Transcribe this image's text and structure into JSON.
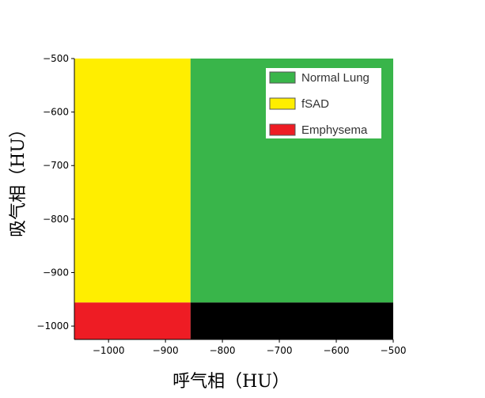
{
  "chart_data": {
    "type": "heatmap",
    "xlabel": "呼气相（HU）",
    "ylabel": "吸气相（HU）",
    "xlim": [
      -1060,
      -500
    ],
    "ylim": [
      -1025,
      -500
    ],
    "x_ticks": [
      {
        "value": -1000,
        "label": "−1000"
      },
      {
        "value": -900,
        "label": "−900"
      },
      {
        "value": -800,
        "label": "−800"
      },
      {
        "value": -700,
        "label": "−700"
      },
      {
        "value": -600,
        "label": "−600"
      },
      {
        "value": -500,
        "label": "−500"
      }
    ],
    "y_ticks": [
      {
        "value": -500,
        "label": "−500"
      },
      {
        "value": -600,
        "label": "−600"
      },
      {
        "value": -700,
        "label": "−700"
      },
      {
        "value": -800,
        "label": "−800"
      },
      {
        "value": -900,
        "label": "−900"
      },
      {
        "value": -1000,
        "label": "−1000"
      }
    ],
    "regions": [
      {
        "name": "fSAD",
        "x": [
          -1060,
          -856
        ],
        "y": [
          -956,
          -500
        ],
        "color": "#ffee00"
      },
      {
        "name": "Normal Lung",
        "x": [
          -856,
          -500
        ],
        "y": [
          -956,
          -500
        ],
        "color": "#39b54a"
      },
      {
        "name": "Emphysema",
        "x": [
          -1060,
          -856
        ],
        "y": [
          -1025,
          -956
        ],
        "color": "#ee1c24"
      },
      {
        "name": "",
        "x": [
          -856,
          -500
        ],
        "y": [
          -1025,
          -956
        ],
        "color": "#000000"
      }
    ],
    "legend": {
      "placement": "top-right",
      "entries": [
        {
          "label": "Normal Lung",
          "color": "#39b54a"
        },
        {
          "label": "fSAD",
          "color": "#ffee00"
        },
        {
          "label": "Emphysema",
          "color": "#ee1c24"
        }
      ]
    },
    "grid": false
  }
}
